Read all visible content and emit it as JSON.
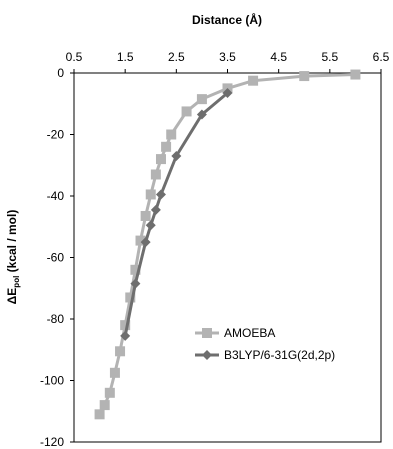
{
  "chart_data": {
    "type": "line",
    "title": "",
    "xlabel": "Distance (Å)",
    "ylabel": "ΔEpol (kcal / mol)",
    "ylabel_main": "ΔE",
    "ylabel_sub": "pol",
    "ylabel_rest": " (kcal / mol)",
    "xlim": [
      0.5,
      6.5
    ],
    "ylim": [
      -120,
      0
    ],
    "x_ticks": [
      0.5,
      1.5,
      2.5,
      3.5,
      4.5,
      5.5,
      6.5
    ],
    "x_tick_labels": [
      "0.5",
      "1.5",
      "2.5",
      "3.5",
      "4.5",
      "5.5",
      "6.5"
    ],
    "y_ticks": [
      0,
      -20,
      -40,
      -60,
      -80,
      -100,
      -120
    ],
    "y_tick_labels": [
      "0",
      "-20",
      "-40",
      "-60",
      "-80",
      "-100",
      "-120"
    ],
    "x_axis_position": "top",
    "grid": false,
    "legend_position": "lower-right",
    "series": [
      {
        "name": "AMOEBA",
        "color": "#b3b3b3",
        "marker": "square",
        "x": [
          1.0,
          1.1,
          1.2,
          1.3,
          1.4,
          1.5,
          1.6,
          1.7,
          1.8,
          1.9,
          2.0,
          2.1,
          2.2,
          2.3,
          2.4,
          2.7,
          3.0,
          3.5,
          4.0,
          5.0,
          6.0
        ],
        "y": [
          -111,
          -108,
          -104,
          -97.5,
          -90.5,
          -82,
          -73,
          -64,
          -54.5,
          -46.5,
          -39.5,
          -33,
          -28,
          -24,
          -20,
          -12.5,
          -8.5,
          -5,
          -2.5,
          -1,
          -0.5
        ]
      },
      {
        "name": "B3LYP/6-31G(2d,2p)",
        "color": "#6e6e6e",
        "marker": "diamond",
        "x": [
          1.5,
          1.7,
          1.9,
          2.0,
          2.1,
          2.2,
          2.5,
          3.0,
          3.5
        ],
        "y": [
          -85.5,
          -68.5,
          -55,
          -49.5,
          -44.5,
          -39.5,
          -27,
          -13.5,
          -6.5
        ]
      }
    ]
  }
}
